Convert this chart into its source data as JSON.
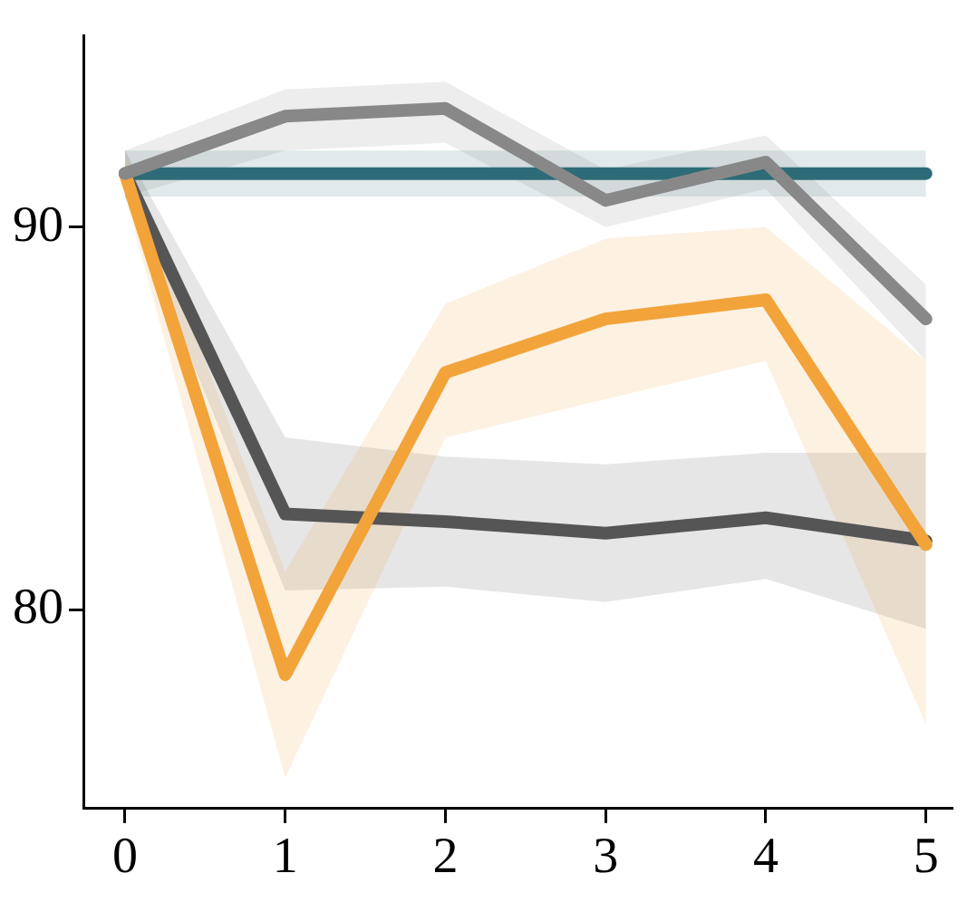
{
  "chart_data": {
    "type": "line",
    "x": [
      0,
      1,
      2,
      3,
      4,
      5
    ],
    "series": [
      {
        "color": "#888888",
        "values": [
          91.4,
          92.9,
          93.1,
          90.7,
          91.7,
          87.6
        ],
        "lower": [
          90.8,
          92.0,
          92.2,
          90.0,
          91.0,
          86.5
        ],
        "upper": [
          92.0,
          93.6,
          93.8,
          91.5,
          92.4,
          88.5
        ]
      },
      {
        "color": "#f2a33a",
        "values": [
          91.4,
          78.3,
          86.2,
          87.6,
          88.1,
          81.7
        ],
        "lower": [
          90.8,
          75.6,
          84.5,
          85.5,
          86.5,
          77.0
        ],
        "upper": [
          92.0,
          81.0,
          88.0,
          89.7,
          90.0,
          86.5
        ]
      },
      {
        "color": "#555555",
        "values": [
          91.4,
          82.5,
          82.3,
          82.0,
          82.4,
          81.8
        ],
        "lower": [
          90.8,
          80.5,
          80.6,
          80.2,
          80.8,
          79.5
        ],
        "upper": [
          92.0,
          84.5,
          84.0,
          83.8,
          84.1,
          84.1
        ]
      },
      {
        "color": "#2e6b78",
        "values": [
          91.4,
          91.4,
          91.4,
          91.4,
          91.4,
          91.4
        ],
        "lower": [
          90.8,
          90.8,
          90.8,
          90.8,
          90.8,
          90.8
        ],
        "upper": [
          92.0,
          92.0,
          92.0,
          92.0,
          92.0,
          92.0
        ]
      }
    ],
    "xlim": [
      -0.26,
      5.16
    ],
    "ylim": [
      74.8,
      95.0
    ],
    "xticks": [
      0,
      1,
      2,
      3,
      4,
      5
    ],
    "yticks": [
      80,
      90
    ],
    "grid": false,
    "legend": false,
    "marker": "none",
    "line_style": "solid"
  }
}
